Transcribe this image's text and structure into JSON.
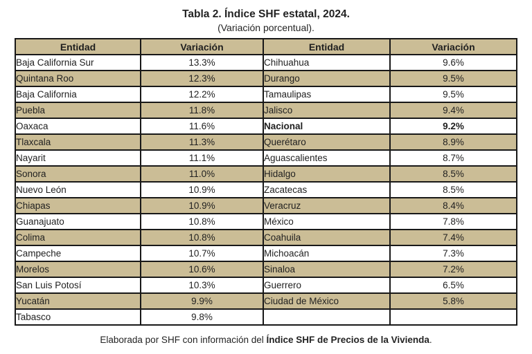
{
  "title": "Tabla 2. Índice SHF estatal, 2024.",
  "subtitle": "(Variación porcentual).",
  "table": {
    "headers": [
      "Entidad",
      "Variación",
      "Entidad",
      "Variación"
    ],
    "split_index": 17,
    "entries": [
      {
        "name": "Baja California Sur",
        "variacion": "13.3%"
      },
      {
        "name": "Quintana Roo",
        "variacion": "12.3%"
      },
      {
        "name": "Baja California",
        "variacion": "12.2%"
      },
      {
        "name": "Puebla",
        "variacion": "11.8%"
      },
      {
        "name": "Oaxaca",
        "variacion": "11.6%"
      },
      {
        "name": "Tlaxcala",
        "variacion": "11.3%"
      },
      {
        "name": "Nayarit",
        "variacion": "11.1%"
      },
      {
        "name": "Sonora",
        "variacion": "11.0%"
      },
      {
        "name": "Nuevo León",
        "variacion": "10.9%"
      },
      {
        "name": "Chiapas",
        "variacion": "10.9%"
      },
      {
        "name": "Guanajuato",
        "variacion": "10.8%"
      },
      {
        "name": "Colima",
        "variacion": "10.8%"
      },
      {
        "name": "Campeche",
        "variacion": "10.7%"
      },
      {
        "name": "Morelos",
        "variacion": "10.6%"
      },
      {
        "name": "San Luis Potosí",
        "variacion": "10.3%"
      },
      {
        "name": "Yucatán",
        "variacion": "9.9%"
      },
      {
        "name": "Tabasco",
        "variacion": "9.8%"
      },
      {
        "name": "Chihuahua",
        "variacion": "9.6%"
      },
      {
        "name": "Durango",
        "variacion": "9.5%"
      },
      {
        "name": "Tamaulipas",
        "variacion": "9.5%"
      },
      {
        "name": "Jalisco",
        "variacion": "9.4%"
      },
      {
        "name": "Nacional",
        "variacion": "9.2%",
        "bold": true
      },
      {
        "name": "Querétaro",
        "variacion": "8.9%"
      },
      {
        "name": "Aguascalientes",
        "variacion": "8.7%"
      },
      {
        "name": "Hidalgo",
        "variacion": "8.5%"
      },
      {
        "name": "Zacatecas",
        "variacion": "8.5%"
      },
      {
        "name": "Veracruz",
        "variacion": "8.4%"
      },
      {
        "name": "México",
        "variacion": "7.8%"
      },
      {
        "name": "Coahuila",
        "variacion": "7.4%"
      },
      {
        "name": "Michoacán",
        "variacion": "7.3%"
      },
      {
        "name": "Sinaloa",
        "variacion": "7.2%"
      },
      {
        "name": "Guerrero",
        "variacion": "6.5%"
      },
      {
        "name": "Ciudad de México",
        "variacion": "5.8%"
      }
    ]
  },
  "footer": {
    "text_regular": "Elaborada por SHF con información del ",
    "text_bold": "Índice SHF de Precios de la Vivienda",
    "text_suffix": "."
  },
  "colors": {
    "row_tan": "#cbbd96",
    "row_white": "#ffffff",
    "border": "#181818",
    "text": "#1f1f1f"
  },
  "chart_data": {
    "type": "table",
    "title": "Tabla 2. Índice SHF estatal, 2024.",
    "subtitle": "(Variación porcentual).",
    "columns": [
      "Entidad",
      "Variación (%)"
    ],
    "rows": [
      [
        "Baja California Sur",
        13.3
      ],
      [
        "Quintana Roo",
        12.3
      ],
      [
        "Baja California",
        12.2
      ],
      [
        "Puebla",
        11.8
      ],
      [
        "Oaxaca",
        11.6
      ],
      [
        "Tlaxcala",
        11.3
      ],
      [
        "Nayarit",
        11.1
      ],
      [
        "Sonora",
        11.0
      ],
      [
        "Nuevo León",
        10.9
      ],
      [
        "Chiapas",
        10.9
      ],
      [
        "Guanajuato",
        10.8
      ],
      [
        "Colima",
        10.8
      ],
      [
        "Campeche",
        10.7
      ],
      [
        "Morelos",
        10.6
      ],
      [
        "San Luis Potosí",
        10.3
      ],
      [
        "Yucatán",
        9.9
      ],
      [
        "Tabasco",
        9.8
      ],
      [
        "Chihuahua",
        9.6
      ],
      [
        "Durango",
        9.5
      ],
      [
        "Tamaulipas",
        9.5
      ],
      [
        "Jalisco",
        9.4
      ],
      [
        "Nacional",
        9.2
      ],
      [
        "Querétaro",
        8.9
      ],
      [
        "Aguascalientes",
        8.7
      ],
      [
        "Hidalgo",
        8.5
      ],
      [
        "Zacatecas",
        8.5
      ],
      [
        "Veracruz",
        8.4
      ],
      [
        "México",
        7.8
      ],
      [
        "Coahuila",
        7.4
      ],
      [
        "Michoacán",
        7.3
      ],
      [
        "Sinaloa",
        7.2
      ],
      [
        "Guerrero",
        6.5
      ],
      [
        "Ciudad de México",
        5.8
      ]
    ],
    "layout": "two-column paired table, ranked descending down left column then right column",
    "source_note": "Elaborada por SHF con información del Índice SHF de Precios de la Vivienda."
  }
}
